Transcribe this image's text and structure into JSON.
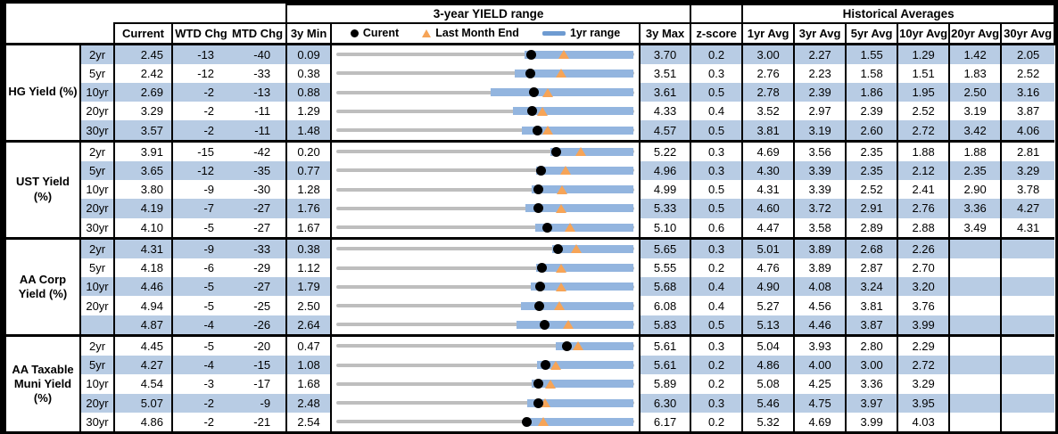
{
  "header": {
    "range_title": "3-year YIELD range",
    "historical_title": "Historical Averages",
    "current": "Current",
    "wtd": "WTD Chg",
    "mtd": "MTD Chg",
    "min": "3y Min",
    "max": "3y Max",
    "zscore": "z-score",
    "avg_cols": [
      "1yr Avg",
      "3yr Avg",
      "5yr Avg",
      "10yr Avg",
      "20yr Avg",
      "30yr Avg"
    ],
    "legend": {
      "current": "Curent",
      "last_month": "Last Month End",
      "range": "1yr range"
    }
  },
  "colors": {
    "row_fill": "#B8CCE4",
    "range_bar_blue": "#93B5DF",
    "track_gray": "#BEBEBE",
    "triangle_orange": "#F6A457",
    "dot_black": "#000000",
    "border_black": "#000000"
  },
  "chart_data": {
    "type": "range-bullet-table",
    "title": "3-year YIELD range",
    "legend_entries": [
      "Curent (black dot)",
      "Last Month End (orange triangle)",
      "1yr range (blue bar)"
    ],
    "axis": "each row spans its own 3y Min to 3y Max",
    "groups": [
      {
        "label": "HG Yield (%)",
        "rows": [
          {
            "tenor": "2yr",
            "current": "2.45",
            "wtd_chg": "-13",
            "mtd_chg": "-40",
            "min_3y": "0.09",
            "max_3y": "3.70",
            "z_score": "0.2",
            "avgs": [
              "3.00",
              "2.27",
              "1.55",
              "1.29",
              "1.42",
              "2.05"
            ],
            "last_month_end": 2.85,
            "range_1yr": [
              2.37,
              3.7
            ]
          },
          {
            "tenor": "5yr",
            "current": "2.42",
            "wtd_chg": "-12",
            "mtd_chg": "-33",
            "min_3y": "0.38",
            "max_3y": "3.51",
            "z_score": "0.3",
            "avgs": [
              "2.76",
              "2.23",
              "1.58",
              "1.51",
              "1.83",
              "2.52"
            ],
            "last_month_end": 2.75,
            "range_1yr": [
              2.26,
              3.51
            ]
          },
          {
            "tenor": "10yr",
            "current": "2.69",
            "wtd_chg": "-2",
            "mtd_chg": "-13",
            "min_3y": "0.88",
            "max_3y": "3.61",
            "z_score": "0.5",
            "avgs": [
              "2.78",
              "2.39",
              "1.86",
              "1.95",
              "2.50",
              "3.16"
            ],
            "last_month_end": 2.82,
            "range_1yr": [
              2.29,
              3.61
            ]
          },
          {
            "tenor": "20yr",
            "current": "3.29",
            "wtd_chg": "-2",
            "mtd_chg": "-11",
            "min_3y": "1.29",
            "max_3y": "4.33",
            "z_score": "0.4",
            "avgs": [
              "3.52",
              "2.97",
              "2.39",
              "2.52",
              "3.19",
              "3.87"
            ],
            "last_month_end": 3.4,
            "range_1yr": [
              3.09,
              4.33
            ]
          },
          {
            "tenor": "30yr",
            "current": "3.57",
            "wtd_chg": "-2",
            "mtd_chg": "-11",
            "min_3y": "1.48",
            "max_3y": "4.57",
            "z_score": "0.5",
            "avgs": [
              "3.81",
              "3.19",
              "2.60",
              "2.72",
              "3.42",
              "4.06"
            ],
            "last_month_end": 3.68,
            "range_1yr": [
              3.41,
              4.57
            ]
          }
        ]
      },
      {
        "label": "UST Yield (%)",
        "rows": [
          {
            "tenor": "2yr",
            "current": "3.91",
            "wtd_chg": "-15",
            "mtd_chg": "-42",
            "min_3y": "0.20",
            "max_3y": "5.22",
            "z_score": "0.3",
            "avgs": [
              "4.69",
              "3.56",
              "2.35",
              "1.88",
              "1.88",
              "2.81"
            ],
            "last_month_end": 4.33,
            "range_1yr": [
              3.82,
              5.22
            ]
          },
          {
            "tenor": "5yr",
            "current": "3.65",
            "wtd_chg": "-12",
            "mtd_chg": "-35",
            "min_3y": "0.77",
            "max_3y": "4.96",
            "z_score": "0.3",
            "avgs": [
              "4.30",
              "3.39",
              "2.35",
              "2.12",
              "2.35",
              "3.29"
            ],
            "last_month_end": 4.0,
            "range_1yr": [
              3.59,
              4.96
            ]
          },
          {
            "tenor": "10yr",
            "current": "3.80",
            "wtd_chg": "-9",
            "mtd_chg": "-30",
            "min_3y": "1.28",
            "max_3y": "4.99",
            "z_score": "0.5",
            "avgs": [
              "4.31",
              "3.39",
              "2.52",
              "2.41",
              "2.90",
              "3.78"
            ],
            "last_month_end": 4.1,
            "range_1yr": [
              3.72,
              4.99
            ]
          },
          {
            "tenor": "20yr",
            "current": "4.19",
            "wtd_chg": "-7",
            "mtd_chg": "-27",
            "min_3y": "1.76",
            "max_3y": "5.33",
            "z_score": "0.5",
            "avgs": [
              "4.60",
              "3.72",
              "2.91",
              "2.76",
              "3.36",
              "4.27"
            ],
            "last_month_end": 4.46,
            "range_1yr": [
              4.03,
              5.33
            ]
          },
          {
            "tenor": "30yr",
            "current": "4.10",
            "wtd_chg": "-5",
            "mtd_chg": "-27",
            "min_3y": "1.67",
            "max_3y": "5.10",
            "z_score": "0.6",
            "avgs": [
              "4.47",
              "3.58",
              "2.89",
              "2.88",
              "3.49",
              "4.31"
            ],
            "last_month_end": 4.37,
            "range_1yr": [
              3.96,
              5.1
            ]
          }
        ]
      },
      {
        "label": "AA Corp Yield (%)",
        "rows": [
          {
            "tenor": "2yr",
            "current": "4.31",
            "wtd_chg": "-9",
            "mtd_chg": "-33",
            "min_3y": "0.38",
            "max_3y": "5.65",
            "z_score": "0.3",
            "avgs": [
              "5.01",
              "3.89",
              "2.68",
              "2.26",
              "",
              ""
            ],
            "last_month_end": 4.64,
            "range_1yr": [
              4.2,
              5.65
            ]
          },
          {
            "tenor": "5yr",
            "current": "4.18",
            "wtd_chg": "-6",
            "mtd_chg": "-29",
            "min_3y": "1.12",
            "max_3y": "5.55",
            "z_score": "0.2",
            "avgs": [
              "4.76",
              "3.89",
              "2.87",
              "2.70",
              "",
              ""
            ],
            "last_month_end": 4.47,
            "range_1yr": [
              4.09,
              5.55
            ]
          },
          {
            "tenor": "10yr",
            "current": "4.46",
            "wtd_chg": "-5",
            "mtd_chg": "-27",
            "min_3y": "1.79",
            "max_3y": "5.68",
            "z_score": "0.4",
            "avgs": [
              "4.90",
              "4.08",
              "3.24",
              "3.20",
              "",
              ""
            ],
            "last_month_end": 4.73,
            "range_1yr": [
              4.33,
              5.68
            ]
          },
          {
            "tenor": "20yr",
            "current": "4.94",
            "wtd_chg": "-5",
            "mtd_chg": "-25",
            "min_3y": "2.50",
            "max_3y": "6.08",
            "z_score": "0.4",
            "avgs": [
              "5.27",
              "4.56",
              "3.81",
              "3.76",
              "",
              ""
            ],
            "last_month_end": 5.19,
            "range_1yr": [
              4.72,
              6.08
            ]
          },
          {
            "tenor": "",
            "current": "4.87",
            "wtd_chg": "-4",
            "mtd_chg": "-26",
            "min_3y": "2.64",
            "max_3y": "5.83",
            "z_score": "0.5",
            "avgs": [
              "5.13",
              "4.46",
              "3.87",
              "3.99",
              "",
              ""
            ],
            "last_month_end": 5.13,
            "range_1yr": [
              4.57,
              5.83
            ]
          }
        ]
      },
      {
        "label": "AA Taxable Muni Yield (%)",
        "rows": [
          {
            "tenor": "2yr",
            "current": "4.45",
            "wtd_chg": "-5",
            "mtd_chg": "-20",
            "min_3y": "0.47",
            "max_3y": "5.61",
            "z_score": "0.3",
            "avgs": [
              "5.04",
              "3.93",
              "2.80",
              "2.29",
              "",
              ""
            ],
            "last_month_end": 4.65,
            "range_1yr": [
              4.27,
              5.61
            ]
          },
          {
            "tenor": "5yr",
            "current": "4.27",
            "wtd_chg": "-4",
            "mtd_chg": "-15",
            "min_3y": "1.08",
            "max_3y": "5.61",
            "z_score": "0.2",
            "avgs": [
              "4.86",
              "4.00",
              "3.00",
              "2.72",
              "",
              ""
            ],
            "last_month_end": 4.42,
            "range_1yr": [
              4.13,
              5.61
            ]
          },
          {
            "tenor": "10yr",
            "current": "4.54",
            "wtd_chg": "-3",
            "mtd_chg": "-17",
            "min_3y": "1.68",
            "max_3y": "5.89",
            "z_score": "0.2",
            "avgs": [
              "5.08",
              "4.25",
              "3.36",
              "3.29",
              "",
              ""
            ],
            "last_month_end": 4.71,
            "range_1yr": [
              4.44,
              5.89
            ]
          },
          {
            "tenor": "20yr",
            "current": "5.07",
            "wtd_chg": "-2",
            "mtd_chg": "-9",
            "min_3y": "2.48",
            "max_3y": "6.30",
            "z_score": "0.3",
            "avgs": [
              "5.46",
              "4.75",
              "3.97",
              "3.95",
              "",
              ""
            ],
            "last_month_end": 5.16,
            "range_1yr": [
              4.93,
              6.3
            ]
          },
          {
            "tenor": "30yr",
            "current": "4.86",
            "wtd_chg": "-2",
            "mtd_chg": "-21",
            "min_3y": "2.54",
            "max_3y": "6.17",
            "z_score": "0.2",
            "avgs": [
              "5.32",
              "4.69",
              "3.99",
              "4.03",
              "",
              ""
            ],
            "last_month_end": 5.07,
            "range_1yr": [
              4.82,
              6.17
            ]
          }
        ]
      }
    ]
  }
}
